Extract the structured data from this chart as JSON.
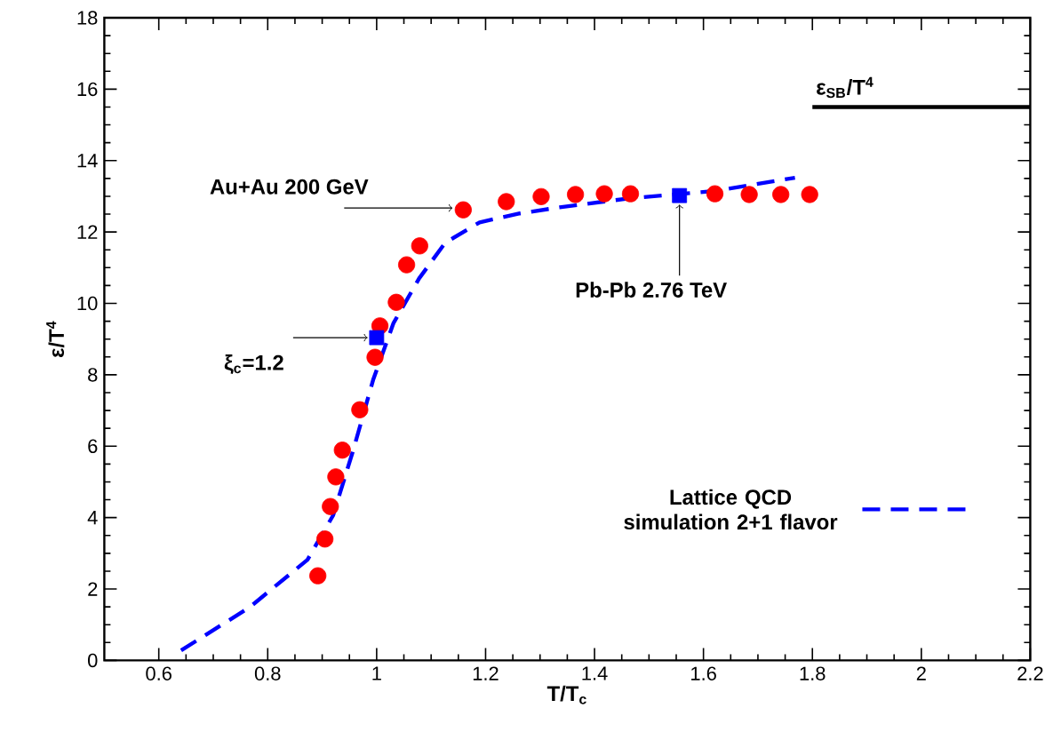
{
  "chart_data": {
    "type": "scatter",
    "xlabel": "T/T$_{c}$",
    "ylabel": "ε/T$^{4}$",
    "xlim": [
      0.5,
      2.2
    ],
    "ylim": [
      0,
      18
    ],
    "xticks": [
      0.6,
      0.8,
      1,
      1.2,
      1.4,
      1.6,
      1.8,
      2,
      2.2
    ],
    "yticks": [
      0,
      2,
      4,
      6,
      8,
      10,
      12,
      14,
      16,
      18
    ],
    "legend": "bottom right",
    "series": [
      {
        "type": "line",
        "color": "#000000",
        "x": [
          1.8,
          2.2
        ],
        "values": [
          15.5,
          15.5
        ]
      },
      {
        "type": "line",
        "name": "Lattice QCD simulation 2+1 flavor",
        "color": "#0000ff",
        "line_style": "dashed",
        "x": [
          0.641,
          0.767,
          0.873,
          0.92,
          0.957,
          0.994,
          1.031,
          1.078,
          1.126,
          1.189,
          1.263,
          1.336,
          1.463,
          1.621,
          1.768
        ],
        "values": [
          0.28,
          1.49,
          2.82,
          4.06,
          5.89,
          7.88,
          9.45,
          10.7,
          11.7,
          12.27,
          12.52,
          12.69,
          12.94,
          13.15,
          13.52
        ]
      },
      {
        "marker": "circle",
        "color": "#ff0000",
        "x": [
          0.892,
          0.905,
          0.915,
          0.925,
          0.937,
          0.969,
          0.997,
          1.006,
          1.036,
          1.055,
          1.079,
          1.159,
          1.238,
          1.302,
          1.365,
          1.418,
          1.466,
          1.621,
          1.684,
          1.742,
          1.795
        ],
        "values": [
          2.37,
          3.4,
          4.31,
          5.14,
          5.89,
          7.02,
          8.49,
          9.37,
          10.03,
          11.08,
          11.61,
          12.62,
          12.85,
          12.99,
          13.05,
          13.07,
          13.07,
          13.07,
          13.05,
          13.05,
          13.05
        ]
      },
      {
        "marker": "square",
        "color": "#0000ff",
        "x": [
          1.0,
          1.556
        ],
        "values": [
          9.04,
          13.02
        ]
      }
    ],
    "annotations": [
      {
        "text": "Au+Au 200 GeV",
        "x": 1.159,
        "y": 12.62
      },
      {
        "text": "Pb-Pb 2.76 TeV",
        "x": 1.556,
        "y": 13.02
      },
      {
        "text": "ξ$_{c}$=1.2",
        "x": 1.0,
        "y": 9.04
      },
      {
        "text": "ε$_{SB}$/T$^{4}$",
        "x": 1.86,
        "y": 15.5
      }
    ]
  }
}
